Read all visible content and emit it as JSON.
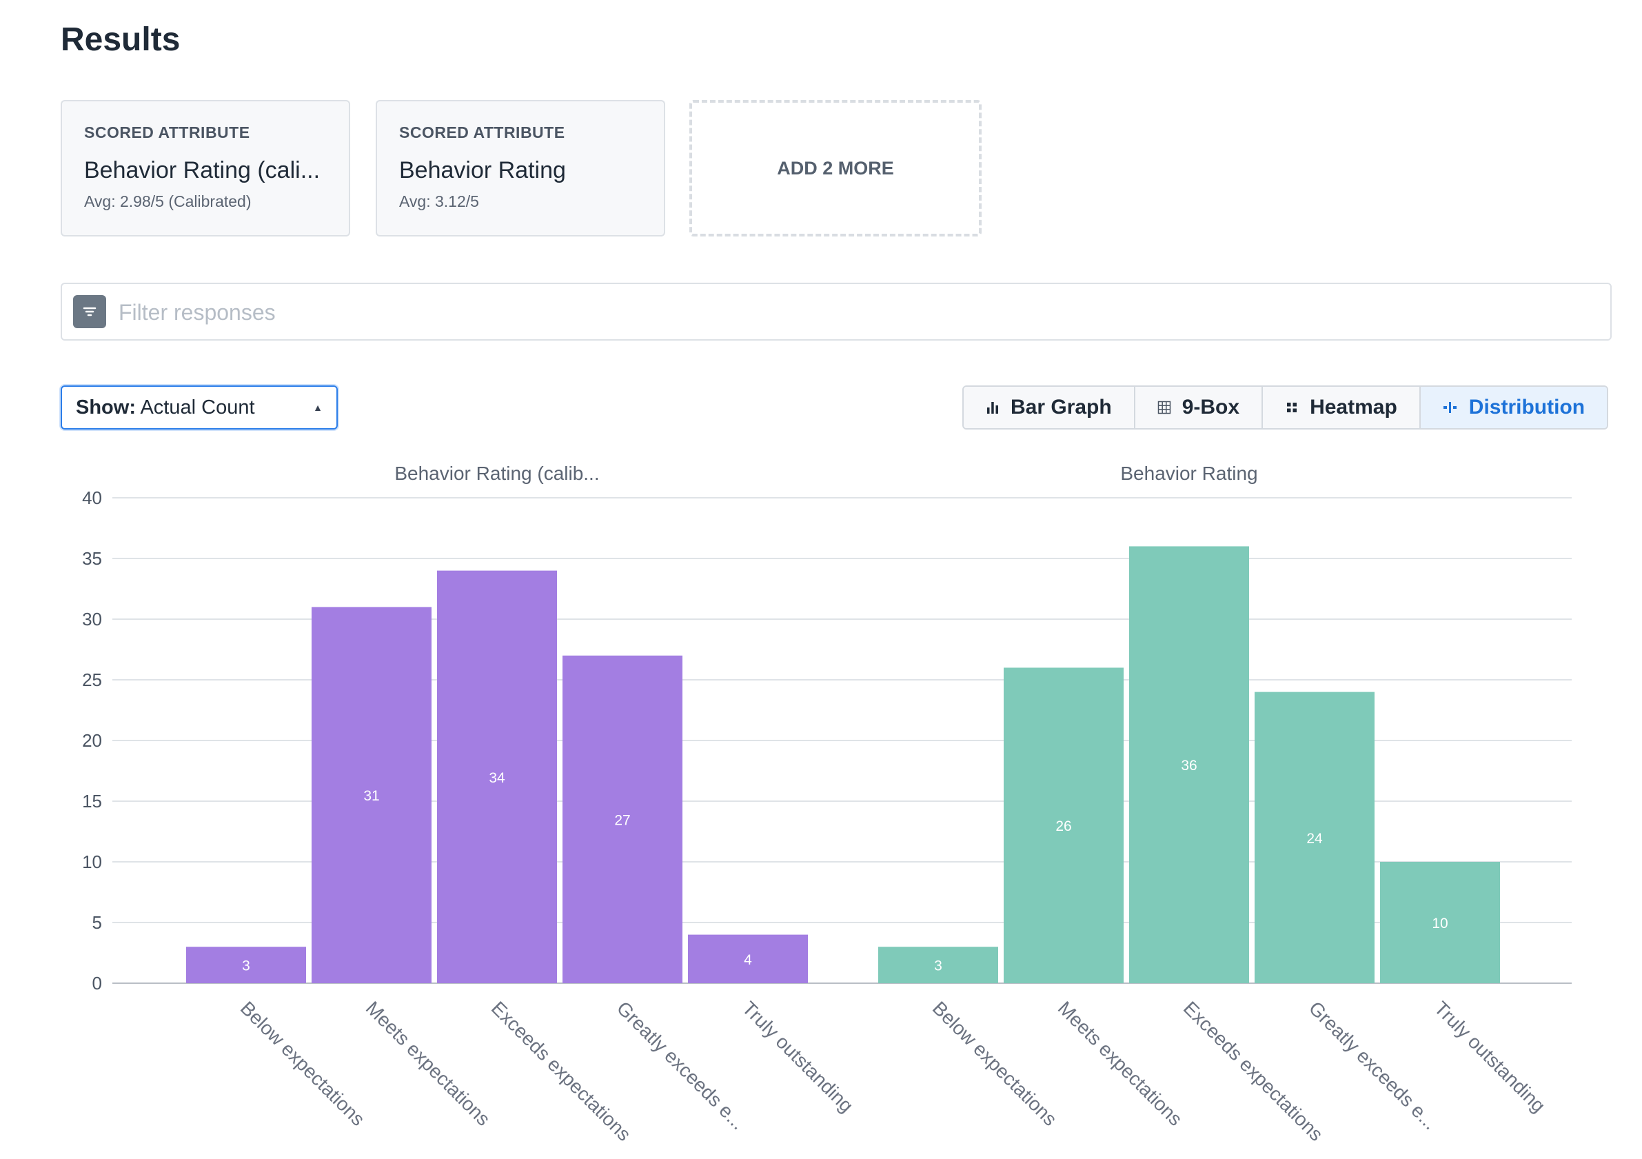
{
  "page": {
    "title": "Results"
  },
  "cards": [
    {
      "kicker": "SCORED ATTRIBUTE",
      "name": "Behavior Rating (cali...",
      "avg": "Avg: 2.98/5 (Calibrated)"
    },
    {
      "kicker": "SCORED ATTRIBUTE",
      "name": "Behavior Rating",
      "avg": "Avg: 3.12/5"
    }
  ],
  "add_more": {
    "label": "ADD 2 MORE"
  },
  "filter": {
    "placeholder": "Filter responses",
    "icon": "filter-icon"
  },
  "show_select": {
    "label": "Show:",
    "value": "Actual Count"
  },
  "view_tabs": [
    {
      "label": "Bar Graph",
      "icon": "bar-graph-icon"
    },
    {
      "label": "9-Box",
      "icon": "grid-icon"
    },
    {
      "label": "Heatmap",
      "icon": "heatmap-icon"
    },
    {
      "label": "Distribution",
      "icon": "distribution-icon",
      "active": true
    }
  ],
  "colors": {
    "accent": "#1d72d8",
    "purple": "#a37ee2",
    "teal": "#7fcab9"
  },
  "chart_data": {
    "type": "bar",
    "ylim": [
      0,
      40
    ],
    "yticks": [
      0,
      5,
      10,
      15,
      20,
      25,
      30,
      35,
      40
    ],
    "grid": true,
    "panels": [
      {
        "title": "Behavior Rating (calib...",
        "color": "#a37ee2",
        "categories": [
          "Below expectations",
          "Meets expectations",
          "Exceeds expectations",
          "Greatly exceeds e...",
          "Truly outstanding"
        ],
        "values": [
          3,
          31,
          34,
          27,
          4
        ]
      },
      {
        "title": "Behavior Rating",
        "color": "#7fcab9",
        "categories": [
          "Below expectations",
          "Meets expectations",
          "Exceeds expectations",
          "Greatly exceeds e...",
          "Truly outstanding"
        ],
        "values": [
          3,
          26,
          36,
          24,
          10
        ]
      }
    ]
  }
}
